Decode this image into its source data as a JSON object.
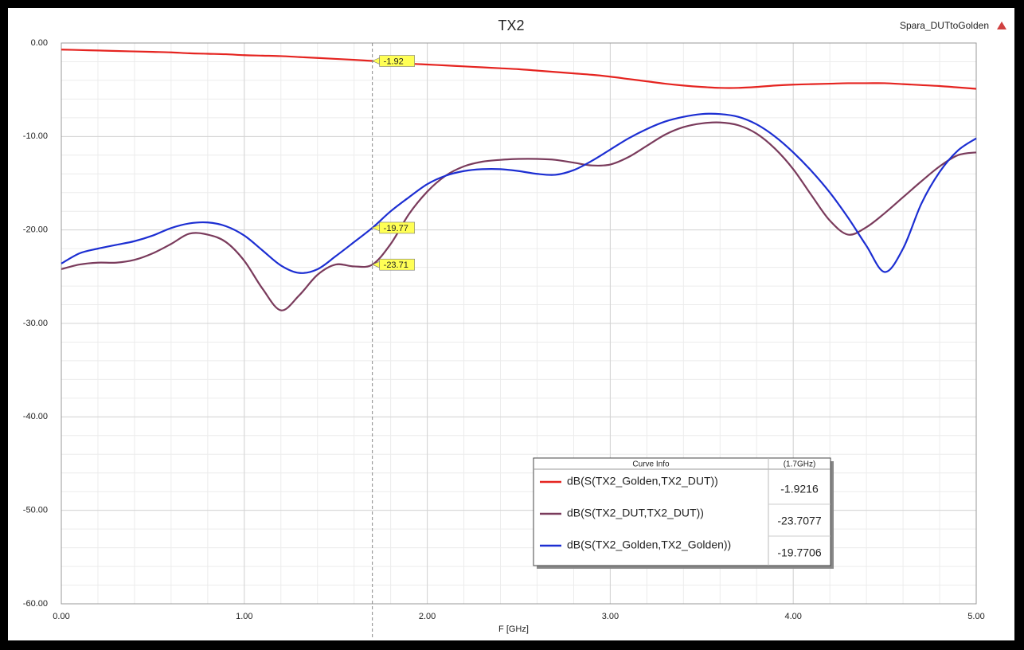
{
  "chart_data": {
    "type": "line",
    "title": "TX2",
    "subtitle": "Spara_DUTtoGolden",
    "x_label": "F [GHz]",
    "x": [
      0,
      0.1,
      0.2,
      0.3,
      0.4,
      0.5,
      0.6,
      0.7,
      0.8,
      0.9,
      1.0,
      1.1,
      1.2,
      1.3,
      1.4,
      1.5,
      1.6,
      1.7,
      1.8,
      1.9,
      2.0,
      2.1,
      2.2,
      2.3,
      2.4,
      2.5,
      2.6,
      2.7,
      2.8,
      2.9,
      3.0,
      3.1,
      3.2,
      3.3,
      3.4,
      3.5,
      3.6,
      3.7,
      3.8,
      3.9,
      4.0,
      4.1,
      4.2,
      4.3,
      4.4,
      4.5,
      4.6,
      4.7,
      4.8,
      4.9,
      5.0
    ],
    "series": [
      {
        "name": "dB(S(TX2_Golden,TX2_DUT))",
        "color": "#e52420",
        "values": [
          -0.7,
          -0.75,
          -0.8,
          -0.85,
          -0.9,
          -0.95,
          -1.0,
          -1.1,
          -1.15,
          -1.2,
          -1.3,
          -1.35,
          -1.4,
          -1.5,
          -1.6,
          -1.7,
          -1.8,
          -1.92,
          -2.05,
          -2.2,
          -2.3,
          -2.4,
          -2.5,
          -2.6,
          -2.7,
          -2.8,
          -2.95,
          -3.1,
          -3.25,
          -3.4,
          -3.6,
          -3.85,
          -4.1,
          -4.35,
          -4.55,
          -4.7,
          -4.8,
          -4.8,
          -4.7,
          -4.55,
          -4.45,
          -4.4,
          -4.35,
          -4.3,
          -4.3,
          -4.3,
          -4.4,
          -4.5,
          -4.6,
          -4.75,
          -4.9
        ]
      },
      {
        "name": "dB(S(TX2_DUT,TX2_DUT))",
        "color": "#7a3b5c",
        "values": [
          -24.2,
          -23.7,
          -23.5,
          -23.5,
          -23.2,
          -22.5,
          -21.5,
          -20.4,
          -20.5,
          -21.3,
          -23.3,
          -26.3,
          -28.6,
          -27.0,
          -24.8,
          -23.7,
          -23.9,
          -23.71,
          -21.5,
          -18.3,
          -15.9,
          -14.2,
          -13.2,
          -12.7,
          -12.5,
          -12.4,
          -12.4,
          -12.5,
          -12.8,
          -13.1,
          -13.0,
          -12.2,
          -11.0,
          -9.8,
          -9.0,
          -8.6,
          -8.5,
          -8.8,
          -9.7,
          -11.3,
          -13.5,
          -16.3,
          -19.0,
          -20.5,
          -19.7,
          -18.2,
          -16.5,
          -14.8,
          -13.2,
          -12.0,
          -11.7
        ]
      },
      {
        "name": "dB(S(TX2_Golden,TX2_Golden))",
        "color": "#1c2ed2",
        "values": [
          -23.6,
          -22.5,
          -22.0,
          -21.6,
          -21.2,
          -20.6,
          -19.8,
          -19.3,
          -19.2,
          -19.6,
          -20.6,
          -22.2,
          -23.8,
          -24.6,
          -24.2,
          -22.8,
          -21.3,
          -19.77,
          -18.0,
          -16.5,
          -15.1,
          -14.2,
          -13.7,
          -13.5,
          -13.5,
          -13.7,
          -14.0,
          -14.1,
          -13.6,
          -12.6,
          -11.4,
          -10.2,
          -9.2,
          -8.4,
          -7.9,
          -7.6,
          -7.6,
          -7.9,
          -8.7,
          -10.0,
          -11.7,
          -13.7,
          -16.0,
          -18.7,
          -21.7,
          -24.5,
          -22.0,
          -17.2,
          -13.8,
          -11.5,
          -10.2
        ]
      }
    ],
    "xlim": [
      0,
      5
    ],
    "ylim": [
      -60,
      0
    ],
    "xticks": [
      {
        "value": 0,
        "label": "0.00"
      },
      {
        "value": 1,
        "label": "1.00"
      },
      {
        "value": 2,
        "label": "2.00"
      },
      {
        "value": 3,
        "label": "3.00"
      },
      {
        "value": 4,
        "label": "4.00"
      },
      {
        "value": 5,
        "label": "5.00"
      }
    ],
    "yticks": [
      {
        "value": 0,
        "label": "0.00"
      },
      {
        "value": -10,
        "label": "-10.00"
      },
      {
        "value": -20,
        "label": "-20.00"
      },
      {
        "value": -30,
        "label": "-30.00"
      },
      {
        "value": -40,
        "label": "-40.00"
      },
      {
        "value": -50,
        "label": "-50.00"
      },
      {
        "value": -60,
        "label": "-60.00"
      }
    ],
    "grid": true,
    "marker": {
      "x": 1.7,
      "values": [
        -1.92,
        -23.71,
        -19.77
      ]
    },
    "curve_info": {
      "title": "Curve Info",
      "column": "(1.7GHz)",
      "values": [
        -1.9216,
        -23.7077,
        -19.7706
      ]
    }
  }
}
